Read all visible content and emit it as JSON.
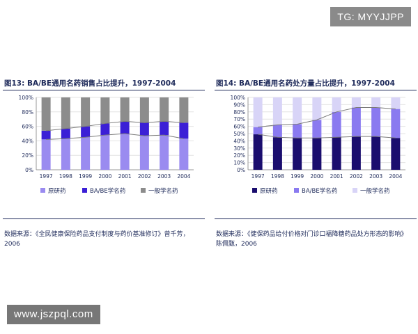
{
  "watermark_top": "TG: MYYJJPP",
  "watermark_bottom": "www.jszpql.com",
  "left_panel": {
    "title": "图13: BA/BE通用名药销售占比提升，1997-2004",
    "source_line1": "数据来源：《全民健康保险药品支付制度与药价基准修订》曾千芳，",
    "source_line2": "2006"
  },
  "right_panel": {
    "title": "图14: BA/BE通用名药处方量占比提升，1997-2004",
    "source_line1": "数据来源：《健保药品给付价格对门诊口福降糖药品处方形态的影响》",
    "source_line2": "陈佩甄，2006"
  },
  "chart_data": [
    {
      "type": "bar",
      "stacked": true,
      "categories": [
        "1997",
        "1998",
        "1999",
        "2000",
        "2001",
        "2002",
        "2003",
        "2004"
      ],
      "yticks": [
        "0%",
        "20%",
        "40%",
        "60%",
        "80%",
        "100%"
      ],
      "ylim": [
        0,
        100
      ],
      "series": [
        {
          "name": "原研药",
          "color": "#9a8bf0",
          "values": [
            42,
            43,
            45,
            48,
            50,
            47,
            48,
            43
          ]
        },
        {
          "name": "BA/BE学名药",
          "color": "#3b1fd6",
          "values": [
            12,
            14,
            15,
            16,
            17,
            18,
            19,
            22
          ]
        },
        {
          "name": "一般学名药",
          "color": "#8c8c8c",
          "values": [
            46,
            43,
            40,
            36,
            33,
            35,
            33,
            35
          ]
        }
      ],
      "line_marks": [
        42,
        43,
        45,
        48,
        50,
        47,
        48,
        43
      ],
      "line_marks2": [
        54,
        57,
        60,
        64,
        67,
        65,
        67,
        65
      ]
    },
    {
      "type": "bar",
      "stacked": true,
      "categories": [
        "1997",
        "1998",
        "1999",
        "2000",
        "2001",
        "2002",
        "2003",
        "2004"
      ],
      "yticks": [
        "0%",
        "10%",
        "20%",
        "30%",
        "40%",
        "50%",
        "60%",
        "70%",
        "80%",
        "90%",
        "100%"
      ],
      "ylim": [
        0,
        100
      ],
      "series": [
        {
          "name": "原研药",
          "color": "#1a0d6e",
          "values": [
            49,
            45,
            44,
            44,
            45,
            46,
            46,
            44
          ]
        },
        {
          "name": "BA/BE学名药",
          "color": "#8a7af0",
          "values": [
            10,
            17,
            19,
            25,
            35,
            40,
            40,
            40
          ]
        },
        {
          "name": "一般学名药",
          "color": "#d8d4f7",
          "values": [
            41,
            38,
            37,
            31,
            20,
            14,
            14,
            16
          ]
        }
      ],
      "line_marks": [
        49,
        45,
        44,
        44,
        45,
        46,
        46,
        44
      ],
      "line_marks2": [
        59,
        62,
        63,
        69,
        80,
        86,
        86,
        84
      ]
    }
  ]
}
